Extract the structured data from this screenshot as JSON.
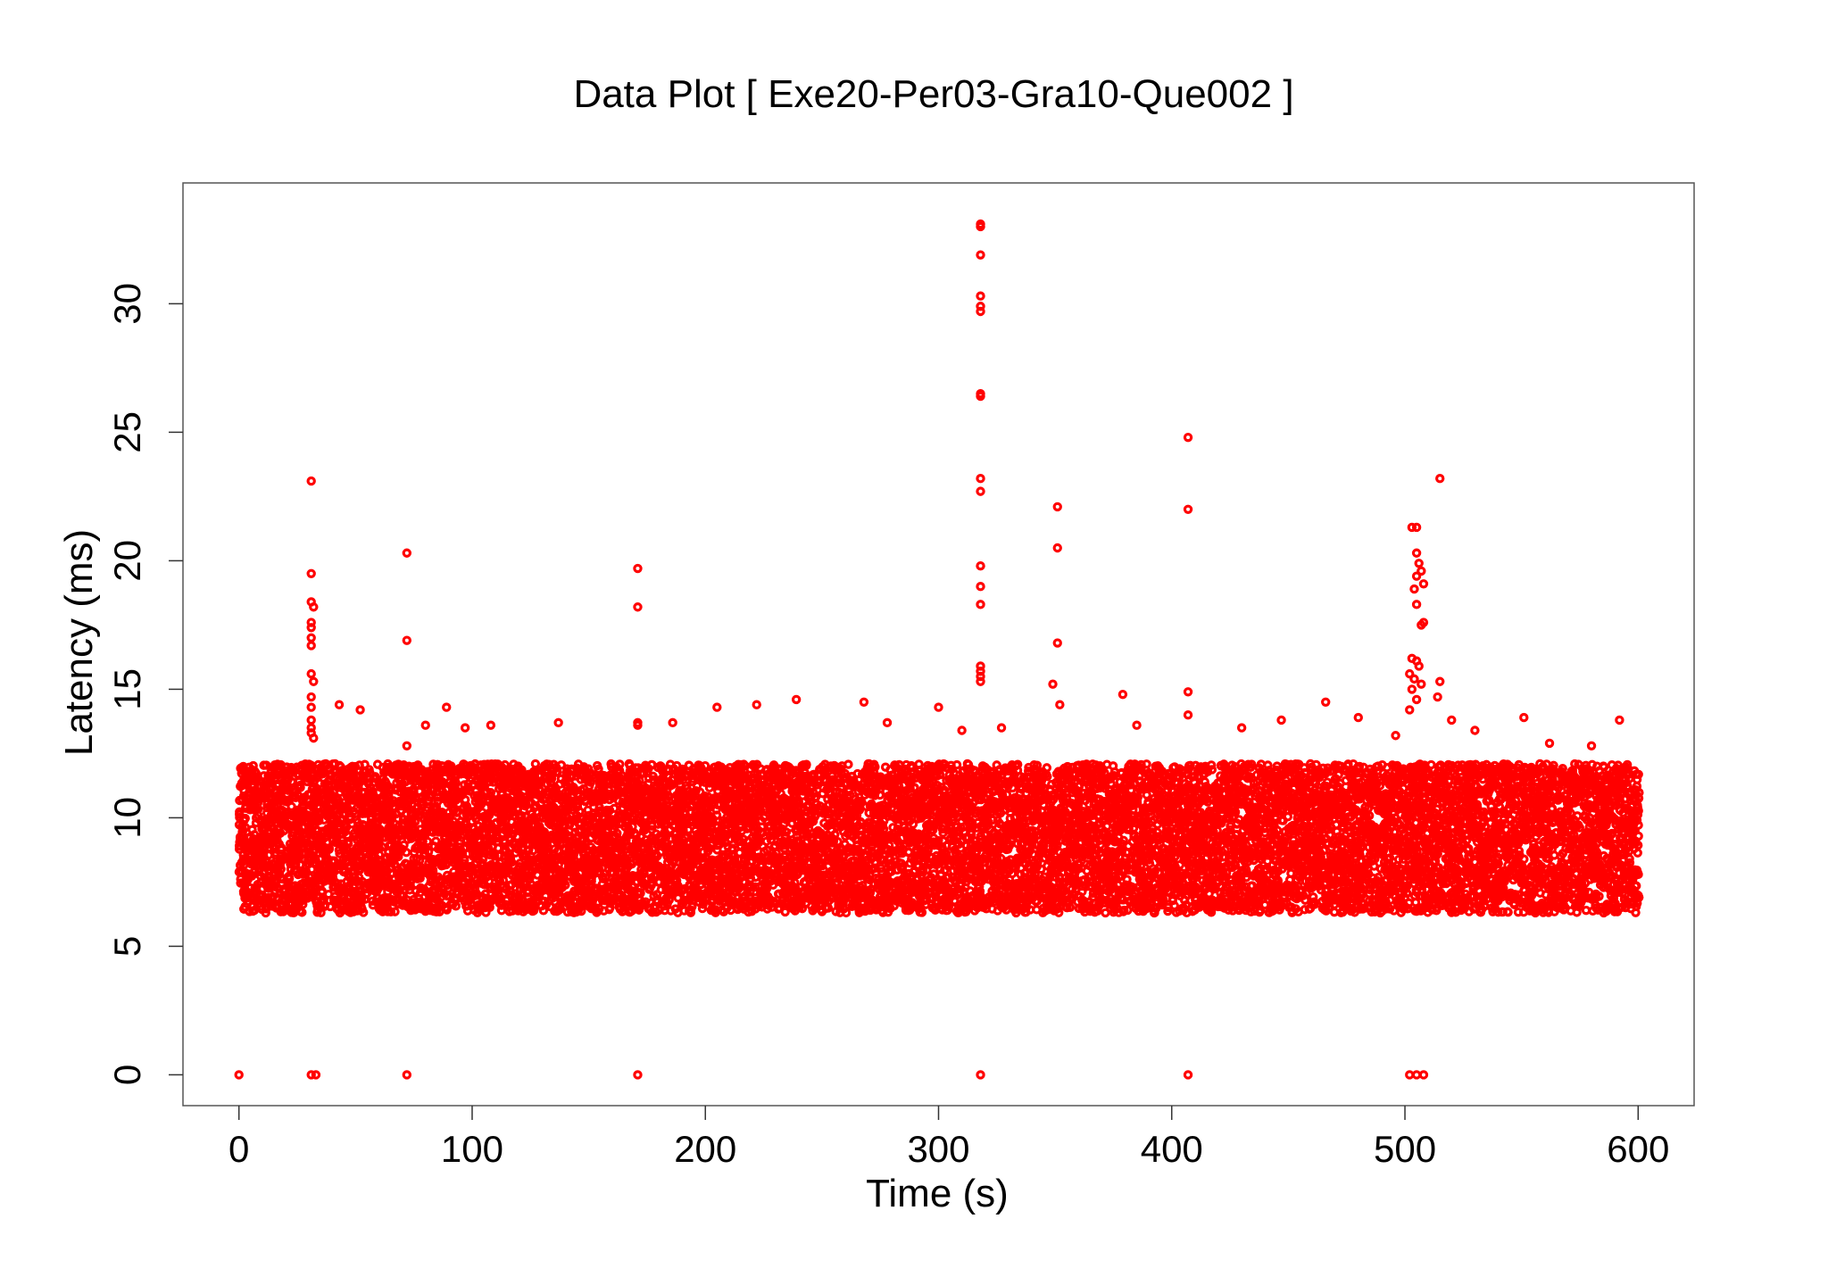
{
  "chart_data": {
    "type": "scatter",
    "title": "Data Plot [ Exe20-Per03-Gra10-Que002 ]",
    "xlabel": "Time (s)",
    "ylabel": "Latency (ms)",
    "xlim": [
      -24,
      624
    ],
    "ylim": [
      -1.2,
      34.7
    ],
    "xticks": [
      0,
      100,
      200,
      300,
      400,
      500,
      600
    ],
    "yticks": [
      0,
      5,
      10,
      15,
      20,
      25,
      30
    ],
    "xtick_labels": [
      "0",
      "100",
      "200",
      "300",
      "400",
      "500",
      "600"
    ],
    "ytick_labels": [
      "0",
      "5",
      "10",
      "15",
      "20",
      "25",
      "30"
    ],
    "grid": false,
    "legend": "none",
    "series": [
      {
        "color": "#ff0000",
        "marker": "open-circle",
        "dense_band": {
          "x_range": [
            0,
            600
          ],
          "y_range": [
            6.3,
            12.1
          ],
          "description_note": ""
        },
        "points": [
          [
            31,
            23.1
          ],
          [
            31,
            19.5
          ],
          [
            31,
            18.4
          ],
          [
            32,
            18.2
          ],
          [
            31,
            17.6
          ],
          [
            31,
            17.4
          ],
          [
            31,
            17.0
          ],
          [
            31,
            16.7
          ],
          [
            31,
            15.6
          ],
          [
            32,
            15.3
          ],
          [
            31,
            14.7
          ],
          [
            31,
            14.3
          ],
          [
            31,
            13.8
          ],
          [
            31,
            13.5
          ],
          [
            31,
            13.3
          ],
          [
            32,
            13.1
          ],
          [
            72,
            20.3
          ],
          [
            72,
            16.9
          ],
          [
            72,
            12.8
          ],
          [
            171,
            19.7
          ],
          [
            171,
            18.2
          ],
          [
            171,
            13.7
          ],
          [
            171,
            13.6
          ],
          [
            318,
            33.1
          ],
          [
            318,
            33.0
          ],
          [
            318,
            31.9
          ],
          [
            318,
            30.3
          ],
          [
            318,
            29.9
          ],
          [
            318,
            29.7
          ],
          [
            318,
            26.5
          ],
          [
            318,
            26.4
          ],
          [
            318,
            23.2
          ],
          [
            318,
            22.7
          ],
          [
            318,
            19.8
          ],
          [
            318,
            19.0
          ],
          [
            318,
            18.3
          ],
          [
            318,
            15.9
          ],
          [
            318,
            15.7
          ],
          [
            318,
            15.5
          ],
          [
            318,
            15.3
          ],
          [
            351,
            22.1
          ],
          [
            351,
            20.5
          ],
          [
            351,
            16.8
          ],
          [
            349,
            15.2
          ],
          [
            352,
            14.4
          ],
          [
            407,
            24.8
          ],
          [
            407,
            22.0
          ],
          [
            407,
            14.9
          ],
          [
            407,
            14.0
          ],
          [
            515,
            23.2
          ],
          [
            503,
            21.3
          ],
          [
            505,
            21.3
          ],
          [
            505,
            20.3
          ],
          [
            506,
            19.9
          ],
          [
            507,
            19.6
          ],
          [
            505,
            19.4
          ],
          [
            508,
            19.1
          ],
          [
            504,
            18.9
          ],
          [
            505,
            18.3
          ],
          [
            508,
            17.6
          ],
          [
            507,
            17.5
          ],
          [
            503,
            16.2
          ],
          [
            505,
            16.1
          ],
          [
            506,
            15.9
          ],
          [
            502,
            15.6
          ],
          [
            504,
            15.4
          ],
          [
            507,
            15.2
          ],
          [
            503,
            15.0
          ],
          [
            505,
            14.6
          ],
          [
            502,
            14.2
          ],
          [
            515,
            15.3
          ],
          [
            514,
            14.7
          ],
          [
            43,
            14.4
          ],
          [
            52,
            14.2
          ],
          [
            89,
            14.3
          ],
          [
            239,
            14.6
          ],
          [
            268,
            14.5
          ],
          [
            300,
            14.3
          ],
          [
            379,
            14.8
          ],
          [
            466,
            14.5
          ],
          [
            551,
            13.9
          ],
          [
            80,
            13.6
          ],
          [
            97,
            13.5
          ],
          [
            108,
            13.6
          ],
          [
            137,
            13.7
          ],
          [
            186,
            13.7
          ],
          [
            205,
            14.3
          ],
          [
            222,
            14.4
          ],
          [
            278,
            13.7
          ],
          [
            310,
            13.4
          ],
          [
            327,
            13.5
          ],
          [
            385,
            13.6
          ],
          [
            430,
            13.5
          ],
          [
            447,
            13.8
          ],
          [
            480,
            13.9
          ],
          [
            496,
            13.2
          ],
          [
            520,
            13.8
          ],
          [
            530,
            13.4
          ],
          [
            562,
            12.9
          ],
          [
            580,
            12.8
          ],
          [
            592,
            13.8
          ],
          [
            0,
            0.0
          ],
          [
            31,
            0.0
          ],
          [
            33,
            0.0
          ],
          [
            72,
            0.0
          ],
          [
            171,
            0.0
          ],
          [
            318,
            0.0
          ],
          [
            407,
            0.0
          ],
          [
            502,
            0.0
          ],
          [
            505,
            0.0
          ],
          [
            508,
            0.0
          ]
        ]
      }
    ]
  }
}
